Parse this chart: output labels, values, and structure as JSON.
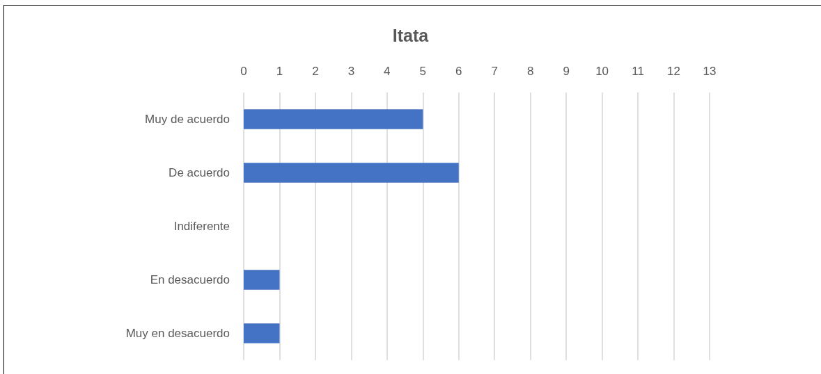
{
  "chart_data": {
    "type": "bar",
    "orientation": "horizontal",
    "title": "Itata",
    "categories": [
      "Muy de acuerdo",
      "De acuerdo",
      "Indiferente",
      "En desacuerdo",
      "Muy en desacuerdo"
    ],
    "values": [
      5,
      6,
      0,
      1,
      1
    ],
    "color": "#4472c4",
    "xlim": [
      0,
      13
    ],
    "xticks": [
      0,
      1,
      2,
      3,
      4,
      5,
      6,
      7,
      8,
      9,
      10,
      11,
      12,
      13
    ],
    "grid": "x"
  }
}
